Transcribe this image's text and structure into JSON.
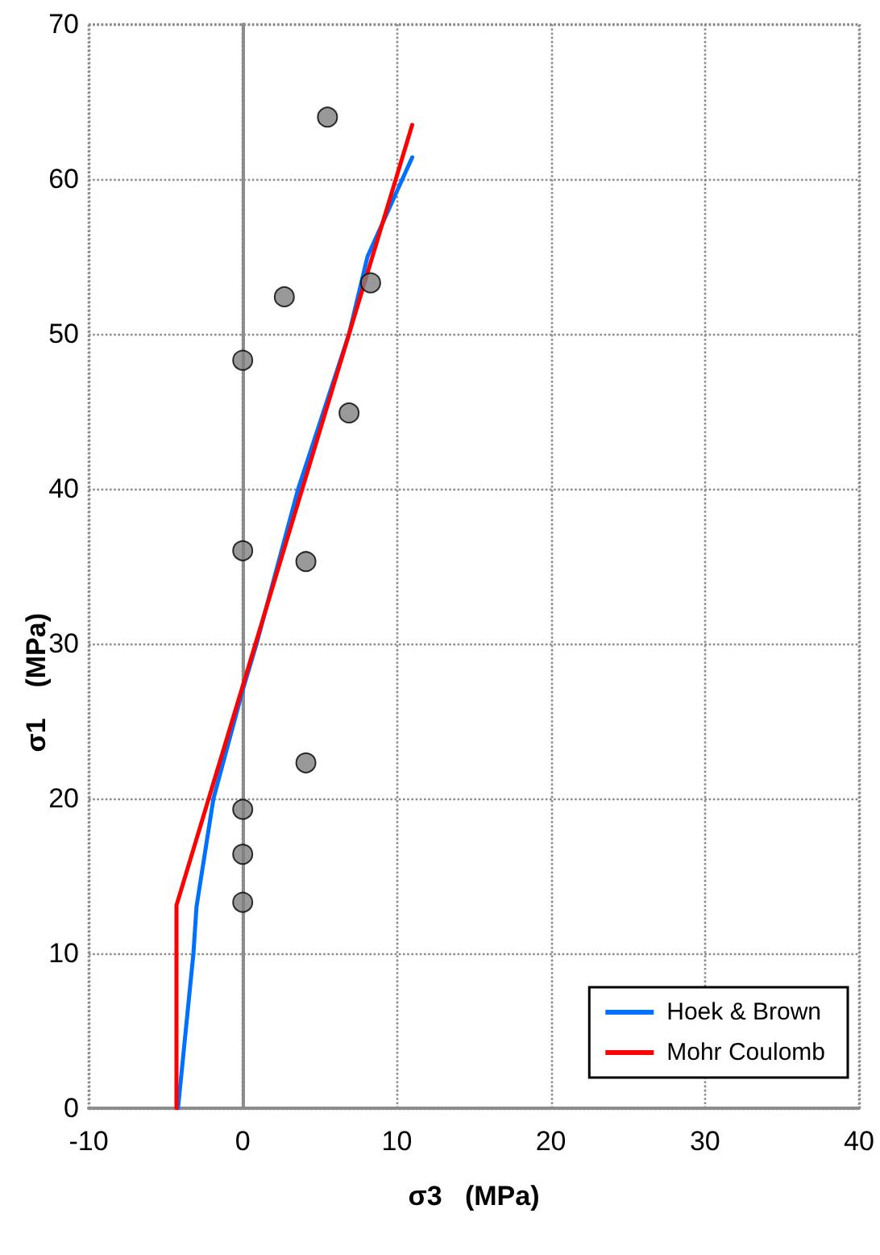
{
  "chart_data": {
    "type": "scatter",
    "xlabel": "σ3   (MPa)",
    "ylabel": "σ1    (MPa)",
    "xlim": [
      -10,
      40
    ],
    "xticks": [
      -10,
      0,
      10,
      20,
      30,
      40
    ],
    "ylim": [
      0,
      70
    ],
    "yticks": [
      0,
      10,
      20,
      30,
      40,
      50,
      60,
      70
    ],
    "grid": true,
    "legend": "bottom right",
    "series": [
      {
        "name": "Hoek & Brown",
        "type": "line",
        "color": "#0070ff",
        "marker": "none",
        "x": [
          -4.2,
          -3.7,
          -3.2,
          -3.0,
          -1.9,
          0,
          0.9,
          3.6,
          6.9,
          8.1,
          11
        ],
        "values": [
          0,
          5,
          10,
          13,
          20,
          27,
          30,
          40,
          50,
          55,
          61.4
        ]
      },
      {
        "name": "Mohr Coulomb",
        "type": "line",
        "color": "#ff0000",
        "marker": "none",
        "x": [
          -4.3,
          -4.3,
          11
        ],
        "values": [
          0,
          13.1,
          63.5
        ]
      },
      {
        "color": "#808080",
        "marker": "circle",
        "x": [
          5.5,
          2.7,
          0,
          8.3,
          6.9,
          0,
          4.1,
          4.1,
          0,
          0,
          0
        ],
        "values": [
          64.0,
          52.4,
          48.3,
          53.3,
          44.9,
          36.0,
          35.3,
          22.3,
          19.3,
          16.4,
          13.3
        ]
      }
    ]
  }
}
